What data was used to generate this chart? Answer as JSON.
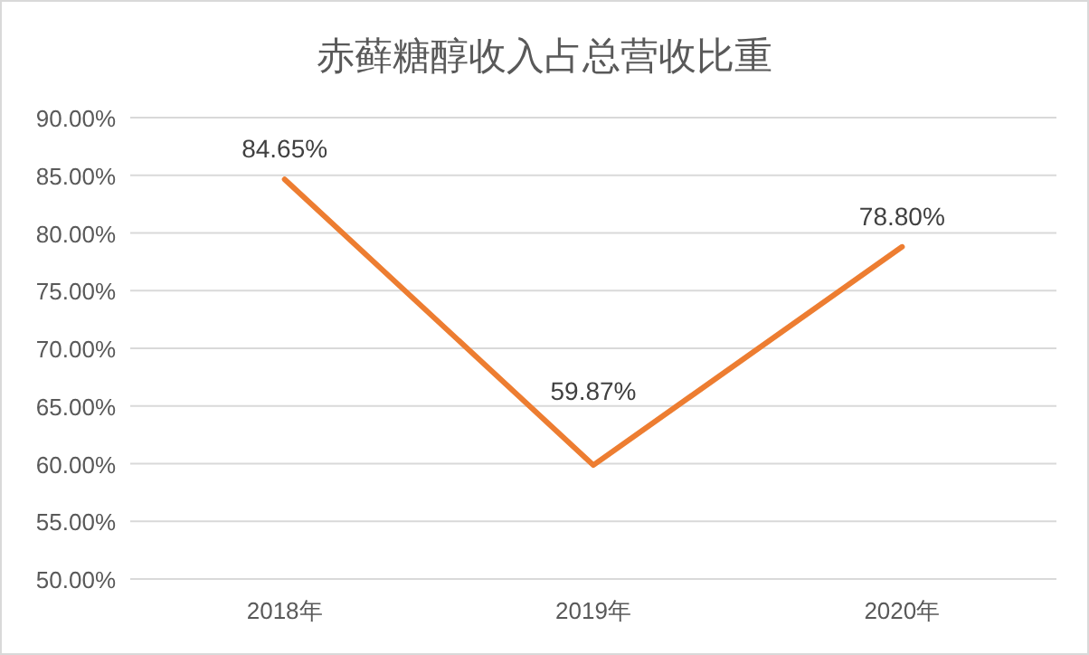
{
  "chart_data": {
    "type": "line",
    "title": "赤藓糖醇收入占总营收比重",
    "categories": [
      "2018年",
      "2019年",
      "2020年"
    ],
    "series": [
      {
        "color": "#ed7d31",
        "values": [
          84.65,
          59.87,
          78.8
        ]
      }
    ],
    "ylim": [
      50,
      90
    ],
    "yticks": [
      {
        "value": 50,
        "label": "50.00%"
      },
      {
        "value": 55,
        "label": "55.00%"
      },
      {
        "value": 60,
        "label": "60.00%"
      },
      {
        "value": 65,
        "label": "65.00%"
      },
      {
        "value": 70,
        "label": "70.00%"
      },
      {
        "value": 75,
        "label": "75.00%"
      },
      {
        "value": 80,
        "label": "80.00%"
      },
      {
        "value": 85,
        "label": "85.00%"
      },
      {
        "value": 90,
        "label": "90.00%"
      }
    ],
    "value_labels": [
      "84.65%",
      "59.87%",
      "78.80%"
    ],
    "grid": "y",
    "marker": "none",
    "line_style": "solid"
  }
}
